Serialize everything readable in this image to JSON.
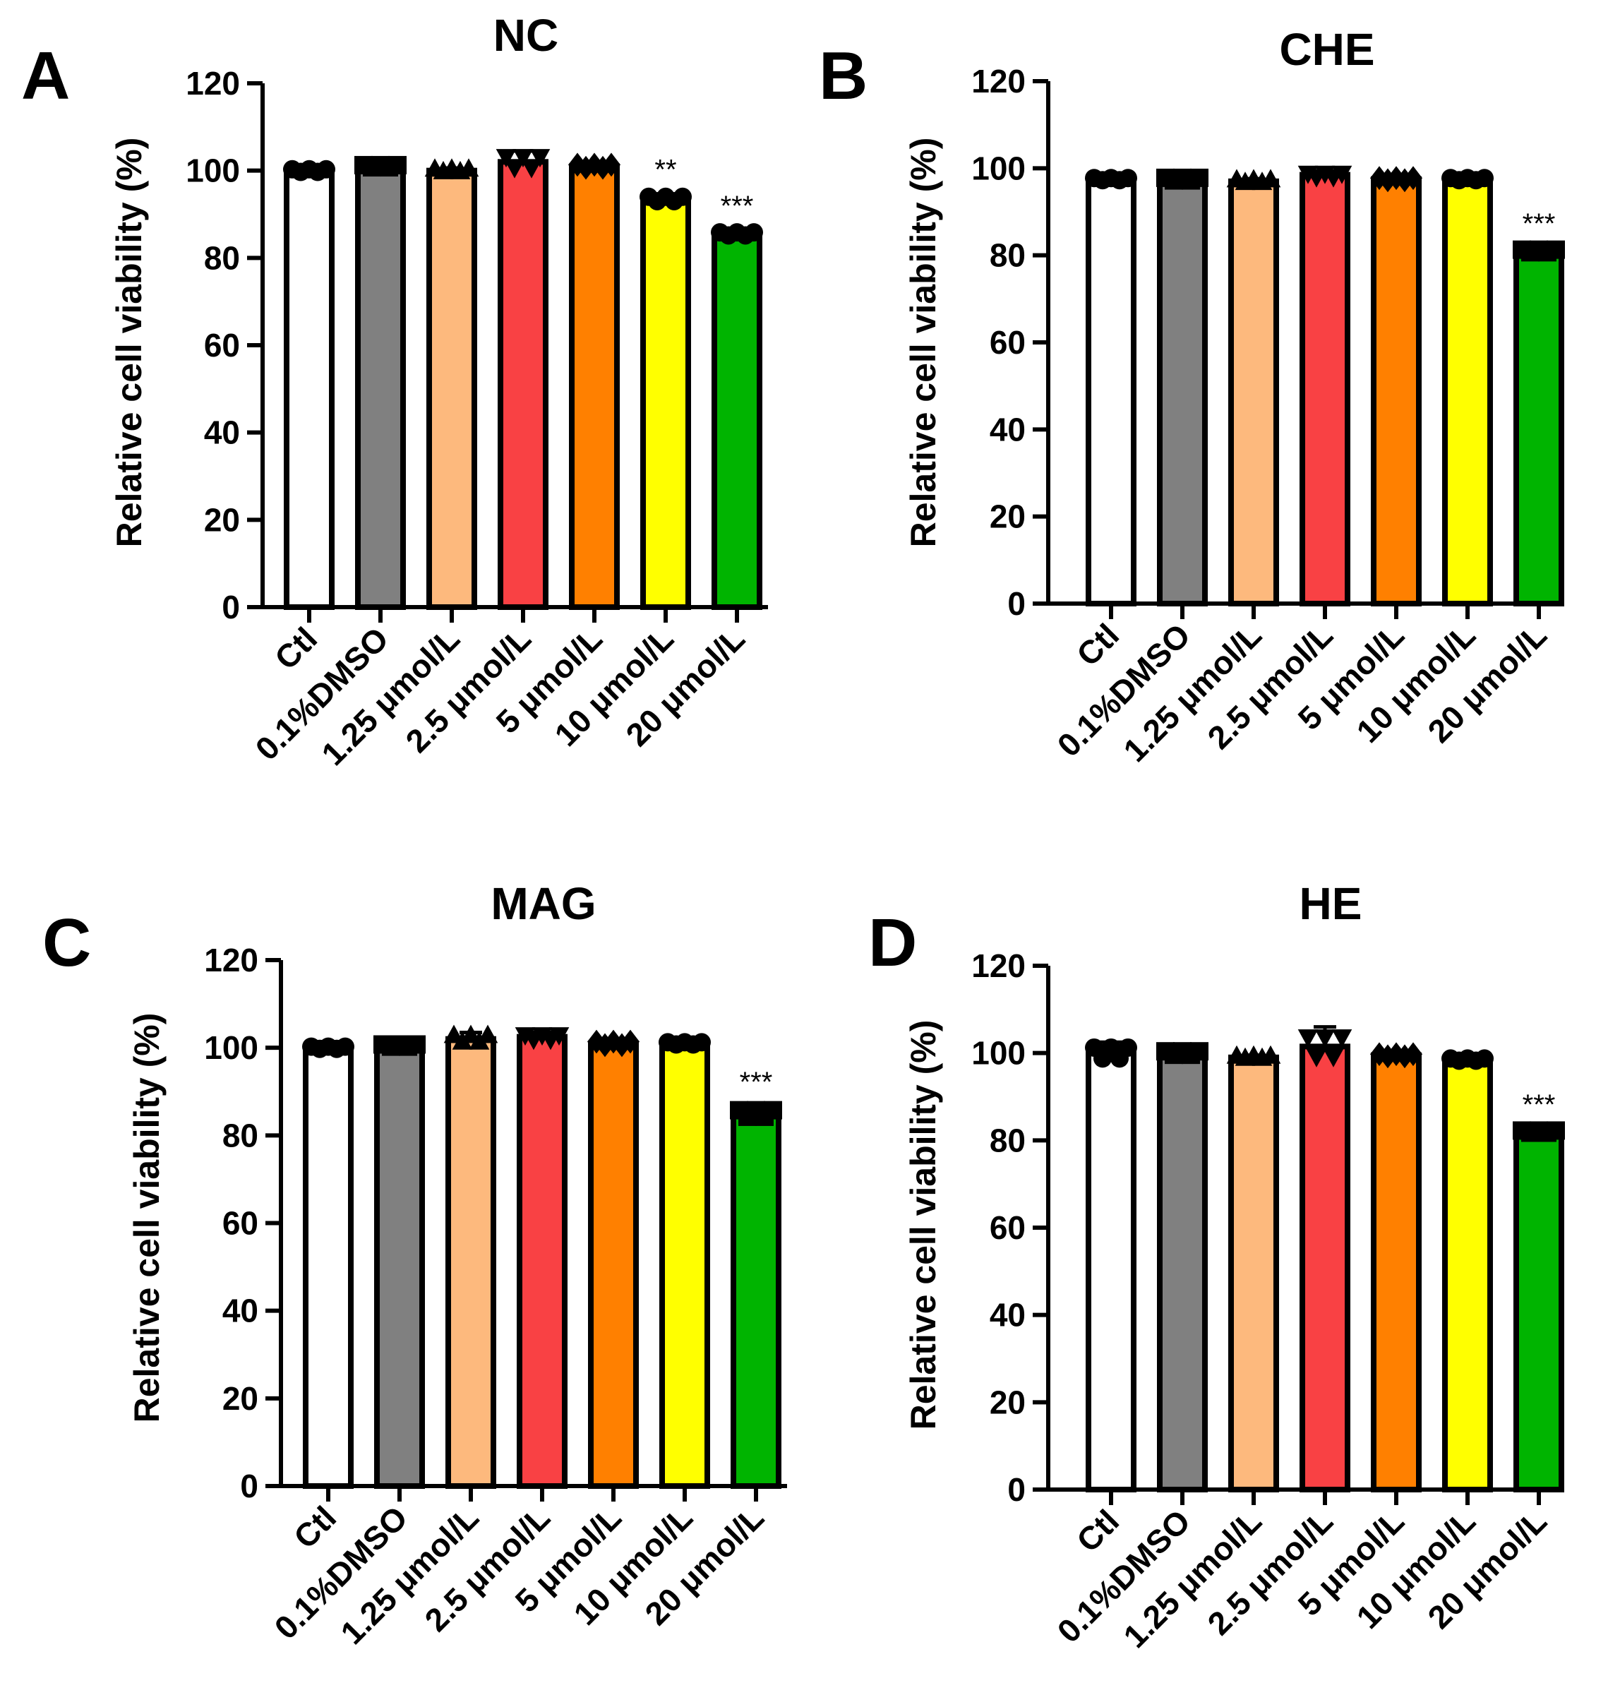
{
  "chart_data": [
    {
      "panel": "A",
      "type": "bar",
      "title": "NC",
      "ylabel": "Relative cell viability (%)",
      "ylim": [
        0,
        120
      ],
      "yticks": [
        "0",
        "20",
        "40",
        "60",
        "80",
        "100",
        "120"
      ],
      "categories": [
        "Ctl",
        "0.1%DMSO",
        "1.25 μmol/L",
        "2.5 μmol/L",
        "5 μmol/L",
        "10 μmol/L",
        "20 μmol/L"
      ],
      "values": [
        100,
        101,
        100,
        102,
        101,
        93.5,
        85.5
      ],
      "errors": [
        0.6,
        0.5,
        0.6,
        2.5,
        0.7,
        1.0,
        0.7
      ],
      "significance": [
        "",
        "",
        "",
        "",
        "",
        "**",
        "***"
      ],
      "colors": [
        "#ffffff",
        "#808080",
        "#fdb97d",
        "#f94144",
        "#ff8000",
        "#ffff00",
        "#00b400"
      ],
      "markers": [
        "circle",
        "square",
        "triangle-up",
        "triangle-down",
        "diamond",
        "circle",
        "circle"
      ]
    },
    {
      "panel": "B",
      "type": "bar",
      "title": "CHE",
      "ylabel": "Relative cell viability (%)",
      "ylim": [
        0,
        120
      ],
      "yticks": [
        "0",
        "20",
        "40",
        "60",
        "80",
        "100",
        "120"
      ],
      "categories": [
        "Ctl",
        "0.1%DMSO",
        "1.25 μmol/L",
        "2.5 μmol/L",
        "5 μmol/L",
        "10 μmol/L",
        "20 μmol/L"
      ],
      "values": [
        97.5,
        97.5,
        97,
        98.5,
        97.5,
        97.5,
        81
      ],
      "errors": [
        0.5,
        0.6,
        0.6,
        0.8,
        0.5,
        0.5,
        0.6
      ],
      "significance": [
        "",
        "",
        "",
        "",
        "",
        "",
        "***"
      ],
      "colors": [
        "#ffffff",
        "#808080",
        "#fdb97d",
        "#f94144",
        "#ff8000",
        "#ffff00",
        "#00b400"
      ],
      "markers": [
        "circle",
        "square",
        "triangle-up",
        "triangle-down",
        "diamond",
        "circle",
        "square"
      ]
    },
    {
      "panel": "C",
      "type": "bar",
      "title": "MAG",
      "ylabel": "Relative cell viability (%)",
      "ylim": [
        0,
        120
      ],
      "yticks": [
        "0",
        "20",
        "40",
        "60",
        "80",
        "100",
        "120"
      ],
      "categories": [
        "Ctl",
        "0.1%DMSO",
        "1.25 μmol/L",
        "2.5 μmol/L",
        "5 μmol/L",
        "10 μmol/L",
        "20 μmol/L"
      ],
      "values": [
        100,
        100.5,
        102,
        102.5,
        101,
        101,
        85
      ],
      "errors": [
        0.5,
        0.5,
        1.5,
        1.0,
        0.8,
        0.5,
        1.5
      ],
      "significance": [
        "",
        "",
        "",
        "",
        "",
        "",
        "***"
      ],
      "colors": [
        "#ffffff",
        "#808080",
        "#fdb97d",
        "#f94144",
        "#ff8000",
        "#ffff00",
        "#00b400"
      ],
      "markers": [
        "circle",
        "square",
        "triangle-up",
        "triangle-down",
        "diamond",
        "circle",
        "square"
      ]
    },
    {
      "panel": "D",
      "type": "bar",
      "title": "HE",
      "ylabel": "Relative cell viability (%)",
      "ylim": [
        0,
        120
      ],
      "yticks": [
        "0",
        "20",
        "40",
        "60",
        "80",
        "100",
        "120"
      ],
      "categories": [
        "Ctl",
        "0.1%DMSO",
        "1.25 μmol/L",
        "2.5 μmol/L",
        "5 μmol/L",
        "10 μmol/L",
        "20 μmol/L"
      ],
      "values": [
        100,
        100,
        99,
        101.5,
        99.5,
        98.5,
        82
      ],
      "errors": [
        2.5,
        0.8,
        0.5,
        4.5,
        0.5,
        0.5,
        0.5
      ],
      "significance": [
        "",
        "",
        "",
        "",
        "",
        "",
        "***"
      ],
      "colors": [
        "#ffffff",
        "#808080",
        "#fdb97d",
        "#f94144",
        "#ff8000",
        "#ffff00",
        "#00b400"
      ],
      "markers": [
        "circle",
        "square",
        "triangle-up",
        "triangle-down",
        "diamond",
        "circle",
        "square"
      ]
    }
  ]
}
